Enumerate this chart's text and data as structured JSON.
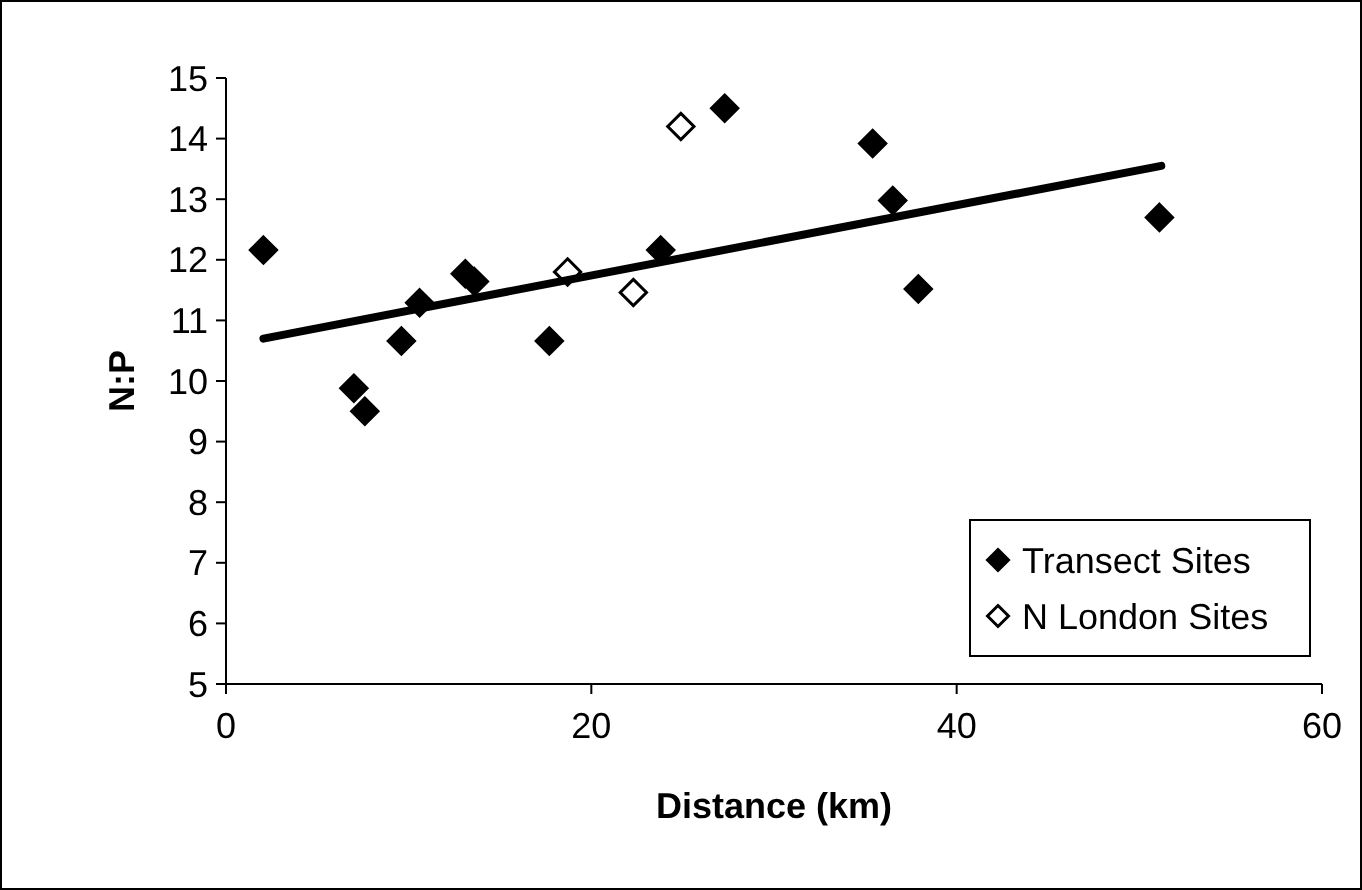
{
  "chart_data": {
    "type": "scatter",
    "xlabel": "Distance (km)",
    "ylabel": "N:P",
    "xlim": [
      0,
      60
    ],
    "xticks": [
      0,
      20,
      40,
      60
    ],
    "ylim": [
      5,
      15
    ],
    "yticks": [
      5,
      6,
      7,
      8,
      9,
      10,
      11,
      12,
      13,
      14,
      15
    ],
    "marker": "diamond",
    "legend": "bottom right",
    "grid": false,
    "series": [
      {
        "name": "Transect Sites",
        "color": "#000000",
        "x": [
          2.05,
          7.0,
          7.6,
          9.6,
          10.6,
          13.1,
          13.6,
          17.7,
          23.8,
          27.3,
          35.4,
          36.5,
          37.9,
          51.1
        ],
        "values": [
          12.16,
          9.88,
          9.5,
          10.66,
          11.29,
          11.77,
          11.64,
          10.66,
          12.16,
          14.5,
          13.92,
          12.98,
          11.52,
          12.7
        ]
      },
      {
        "name": "N London Sites",
        "color": "#ffffff",
        "x": [
          18.7,
          22.3,
          24.9
        ],
        "values": [
          11.8,
          11.46,
          14.2
        ]
      },
      {
        "type": "line",
        "marker": "none",
        "color": "#000000",
        "x": [
          2.05,
          51.2
        ],
        "values": [
          10.7,
          13.55
        ]
      }
    ]
  }
}
